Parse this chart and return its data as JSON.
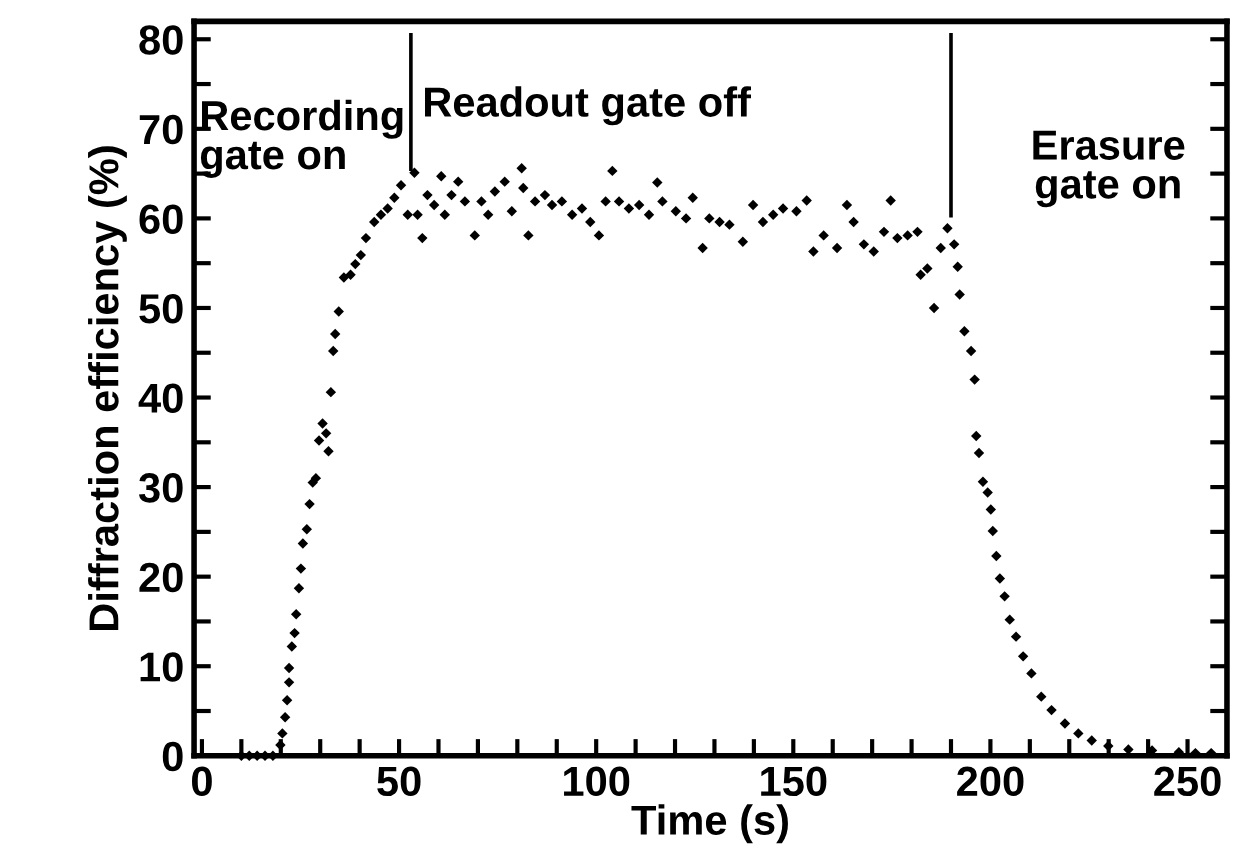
{
  "chart_data": {
    "type": "scatter",
    "xlabel": "Time (s)",
    "ylabel": "Diffraction efficiency (%)",
    "xlim": [
      -2,
      260
    ],
    "ylim": [
      0,
      82
    ],
    "xticks": [
      0,
      {
        "value": 10,
        "label": null
      },
      {
        "value": 20,
        "label": null
      },
      {
        "value": 30,
        "label": null
      },
      {
        "value": 40,
        "label": null
      },
      50,
      {
        "value": 60,
        "label": null
      },
      {
        "value": 70,
        "label": null
      },
      {
        "value": 80,
        "label": null
      },
      {
        "value": 90,
        "label": null
      },
      100,
      {
        "value": 110,
        "label": null
      },
      {
        "value": 120,
        "label": null
      },
      {
        "value": 130,
        "label": null
      },
      {
        "value": 140,
        "label": null
      },
      150,
      {
        "value": 160,
        "label": null
      },
      {
        "value": 170,
        "label": null
      },
      {
        "value": 180,
        "label": null
      },
      {
        "value": 190,
        "label": null
      },
      200,
      {
        "value": 210,
        "label": null
      },
      {
        "value": 220,
        "label": null
      },
      {
        "value": 230,
        "label": null
      },
      {
        "value": 240,
        "label": null
      },
      250
    ],
    "yticks": [
      0,
      {
        "value": 5,
        "label": null
      },
      10,
      {
        "value": 15,
        "label": null
      },
      20,
      {
        "value": 25,
        "label": null
      },
      30,
      {
        "value": 35,
        "label": null
      },
      40,
      {
        "value": 45,
        "label": null
      },
      50,
      {
        "value": 55,
        "label": null
      },
      60,
      {
        "value": 65,
        "label": null
      },
      70,
      {
        "value": 75,
        "label": null
      },
      80
    ],
    "grid": false,
    "legend": false,
    "annotations": [
      "Recording\ngate on",
      "Readout gate off",
      "Erasure\ngate on"
    ],
    "series": [
      {
        "marker": "diamond",
        "color": "#000000",
        "x": [
          10,
          12,
          14,
          16,
          18,
          19.9,
          20.4,
          21.1,
          21.6,
          22.1,
          22.1,
          22.8,
          23.5,
          23.9,
          24.6,
          25.1,
          25.6,
          26.6,
          27.3,
          28.1,
          28.9,
          29.7,
          30.6,
          31.5,
          32.1,
          32.7,
          33.3,
          33.8,
          34.7,
          36.0,
          37.7,
          38.9,
          40.3,
          41.6,
          43.7,
          45.4,
          47.1,
          48.8,
          50.5,
          52.2,
          53.9,
          54.7,
          55.9,
          57.2,
          58.9,
          60.7,
          61.6,
          63.3,
          65.0,
          66.7,
          69.2,
          70.9,
          72.6,
          74.3,
          76.8,
          78.6,
          81.1,
          81.5,
          82.8,
          84.5,
          87.0,
          88.8,
          91.3,
          93.9,
          96.4,
          98.5,
          100.7,
          102.4,
          104.1,
          105.8,
          108.3,
          110.9,
          113.4,
          115.5,
          116.8,
          120.2,
          122.8,
          124.5,
          127.0,
          128.7,
          131.3,
          133.8,
          137.2,
          139.8,
          142.3,
          144.9,
          147.4,
          150.8,
          153.4,
          155.1,
          157.7,
          161.1,
          163.6,
          165.3,
          167.9,
          170.4,
          173.0,
          174.7,
          176.4,
          179.0,
          181.5,
          182.3,
          184.0,
          185.7,
          187.4,
          189.1,
          190.8,
          191.7,
          192.2,
          193.4,
          195.1,
          196.0,
          196.4,
          197.1,
          198.1,
          199.3,
          200.1,
          200.6,
          201.5,
          202.4,
          203.6,
          204.9,
          206.5,
          208.3,
          210.4,
          212.9,
          215.5,
          218.9,
          222.3,
          225.7,
          229.9,
          235.0,
          241.0,
          247.8,
          252.0,
          256.0
        ],
        "values": [
          0,
          0,
          0,
          0,
          0,
          1.2,
          2.5,
          4.3,
          6.2,
          8.2,
          9.8,
          12.2,
          13.7,
          15.8,
          18.7,
          20.9,
          23.7,
          25.3,
          28.1,
          30.5,
          31.0,
          35.2,
          37.1,
          36.0,
          34.0,
          40.6,
          45.2,
          47.1,
          49.6,
          53.4,
          53.7,
          54.9,
          55.9,
          57.8,
          59.6,
          60.4,
          61.1,
          62.3,
          63.7,
          60.4,
          65.1,
          60.4,
          57.8,
          62.6,
          61.5,
          64.7,
          60.4,
          62.6,
          64.1,
          61.9,
          58.1,
          61.9,
          60.4,
          63.0,
          64.1,
          60.8,
          65.6,
          63.4,
          58.1,
          61.9,
          62.6,
          61.5,
          61.9,
          60.4,
          61.1,
          59.6,
          58.1,
          61.9,
          65.3,
          61.9,
          61.1,
          61.5,
          60.4,
          64.0,
          61.9,
          60.8,
          60.0,
          62.3,
          56.7,
          60.0,
          59.6,
          59.3,
          57.4,
          61.5,
          59.6,
          60.4,
          61.1,
          60.8,
          62.0,
          56.3,
          58.1,
          56.7,
          61.5,
          59.6,
          57.1,
          56.3,
          58.5,
          62.0,
          57.8,
          58.1,
          58.5,
          53.7,
          54.4,
          50.0,
          56.7,
          58.9,
          57.1,
          54.6,
          51.5,
          47.4,
          45.2,
          42.0,
          35.7,
          33.8,
          30.6,
          29.4,
          27.5,
          25.1,
          22.3,
          19.8,
          17.8,
          15.2,
          13.3,
          11.1,
          9.2,
          6.6,
          5.1,
          3.6,
          2.5,
          1.7,
          1.1,
          0.7,
          0.6,
          0.4,
          0.3,
          0.3
        ]
      },
      {
        "type": "line",
        "color": "#000000",
        "x": [
          53,
          53
        ],
        "values": [
          65.5,
          80.5
        ]
      },
      {
        "type": "line",
        "color": "#000000",
        "x": [
          190,
          190
        ],
        "values": [
          60.3,
          80.5
        ]
      }
    ]
  }
}
